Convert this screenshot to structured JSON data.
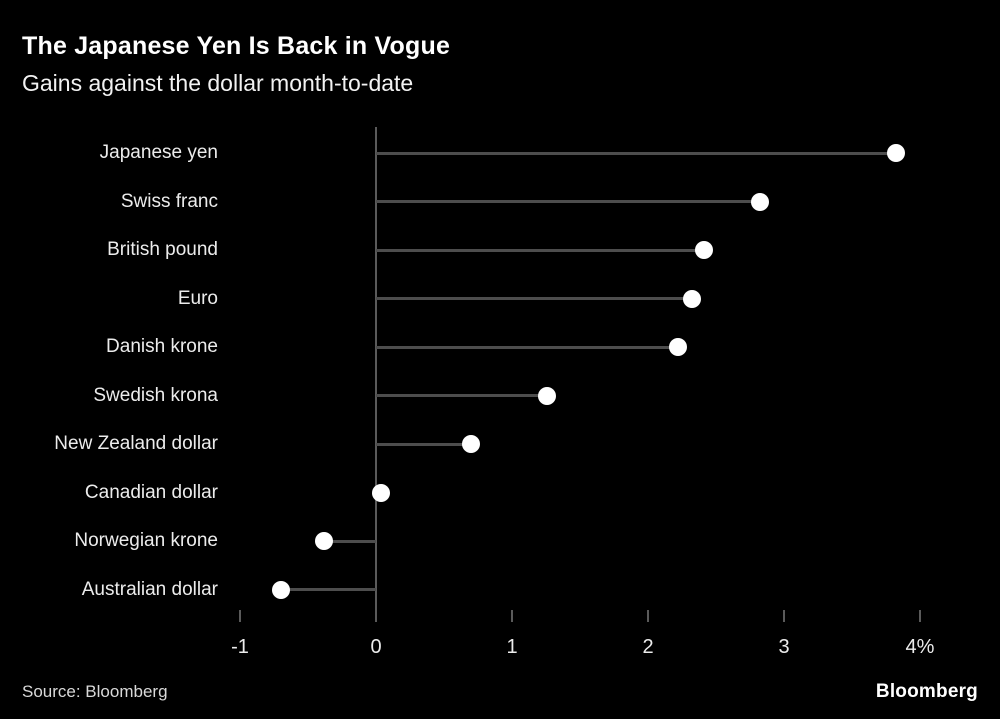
{
  "header": {
    "title": "The Japanese Yen Is Back in Vogue",
    "subtitle": "Gains against the dollar month-to-date"
  },
  "chart_data": {
    "type": "scatter",
    "variant": "lollipop",
    "title": "The Japanese Yen Is Back in Vogue",
    "subtitle": "Gains against the dollar month-to-date",
    "categories": [
      "Japanese yen",
      "Swiss franc",
      "British pound",
      "Euro",
      "Danish krone",
      "Swedish krona",
      "New Zealand dollar",
      "Canadian dollar",
      "Norwegian krone",
      "Australian dollar"
    ],
    "values": [
      3.82,
      2.82,
      2.41,
      2.32,
      2.22,
      1.26,
      0.7,
      0.04,
      -0.38,
      -0.7
    ],
    "unit": "percent",
    "x_ticks": [
      "-1",
      "0",
      "1",
      "2",
      "3",
      "4%"
    ],
    "x_tick_values": [
      -1,
      0,
      1,
      2,
      3,
      4
    ],
    "xlim": [
      -1,
      4.35
    ],
    "grid": false,
    "legend": false,
    "colors": {
      "background": "#000000",
      "dot": "#ffffff",
      "stem": "#4d4d4d",
      "axis": "#5a5a5a",
      "text": "#ececec"
    }
  },
  "footer": {
    "source": "Source: Bloomberg",
    "logo": "Bloomberg"
  }
}
